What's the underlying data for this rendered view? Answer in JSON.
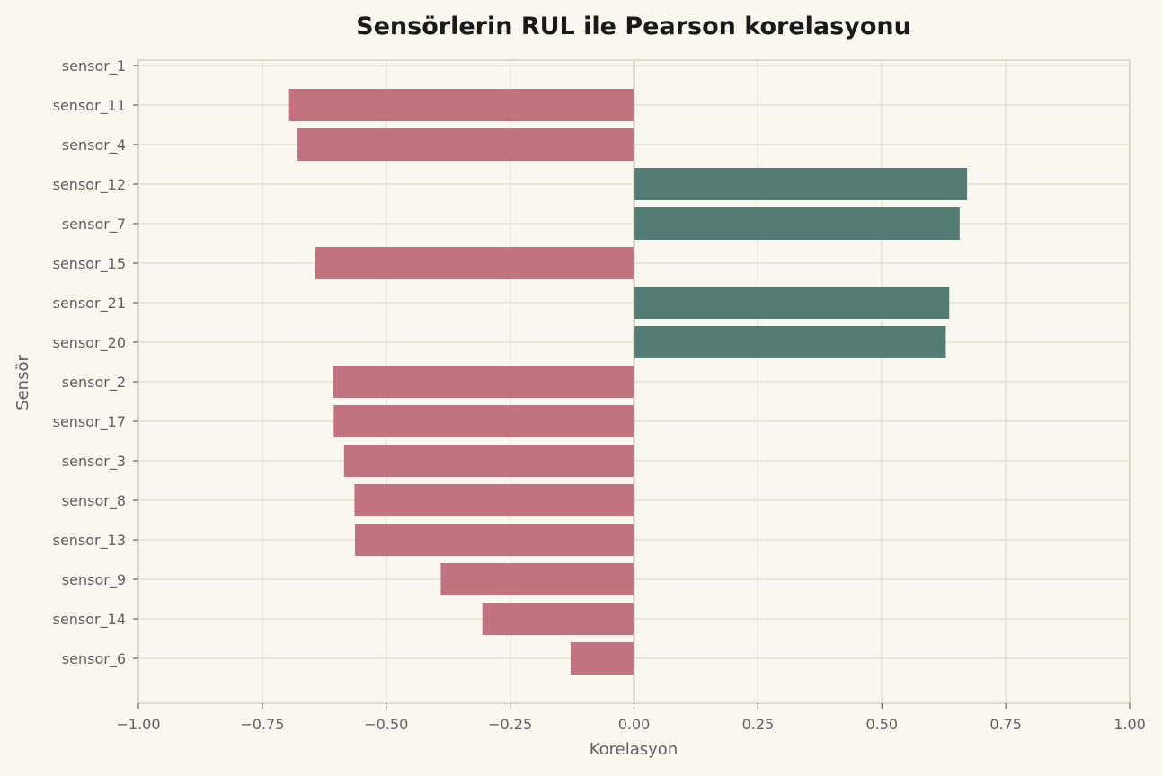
{
  "chart_data": {
    "type": "bar",
    "orientation": "horizontal",
    "title": "Sensörlerin RUL ile Pearson korelasyonu",
    "xlabel": "Korelasyon",
    "ylabel": "Sensör",
    "xlim": [
      -1.0,
      1.0
    ],
    "xticks": [
      -1.0,
      -0.75,
      -0.5,
      -0.25,
      0.0,
      0.25,
      0.5,
      0.75,
      1.0
    ],
    "xtick_labels": [
      "−1.00",
      "−0.75",
      "−0.50",
      "−0.25",
      "0.00",
      "0.25",
      "0.50",
      "0.75",
      "1.00"
    ],
    "grid": true,
    "categories": [
      "sensor_1",
      "sensor_11",
      "sensor_4",
      "sensor_12",
      "sensor_7",
      "sensor_15",
      "sensor_21",
      "sensor_20",
      "sensor_2",
      "sensor_17",
      "sensor_3",
      "sensor_8",
      "sensor_13",
      "sensor_9",
      "sensor_14",
      "sensor_6"
    ],
    "values": [
      0.0,
      -0.696,
      -0.679,
      0.672,
      0.657,
      -0.643,
      0.636,
      0.629,
      -0.607,
      -0.606,
      -0.585,
      -0.564,
      -0.563,
      -0.39,
      -0.306,
      -0.128
    ],
    "colors": {
      "positive": "#4d7871",
      "negative": "#c06e7b",
      "grid": "#e4dfcc",
      "axis": "#d8d2bd",
      "zero_line": "#a8a594",
      "text": "#5f5f5f",
      "title": "#1a1a1a",
      "background": "#faf7f0"
    }
  }
}
